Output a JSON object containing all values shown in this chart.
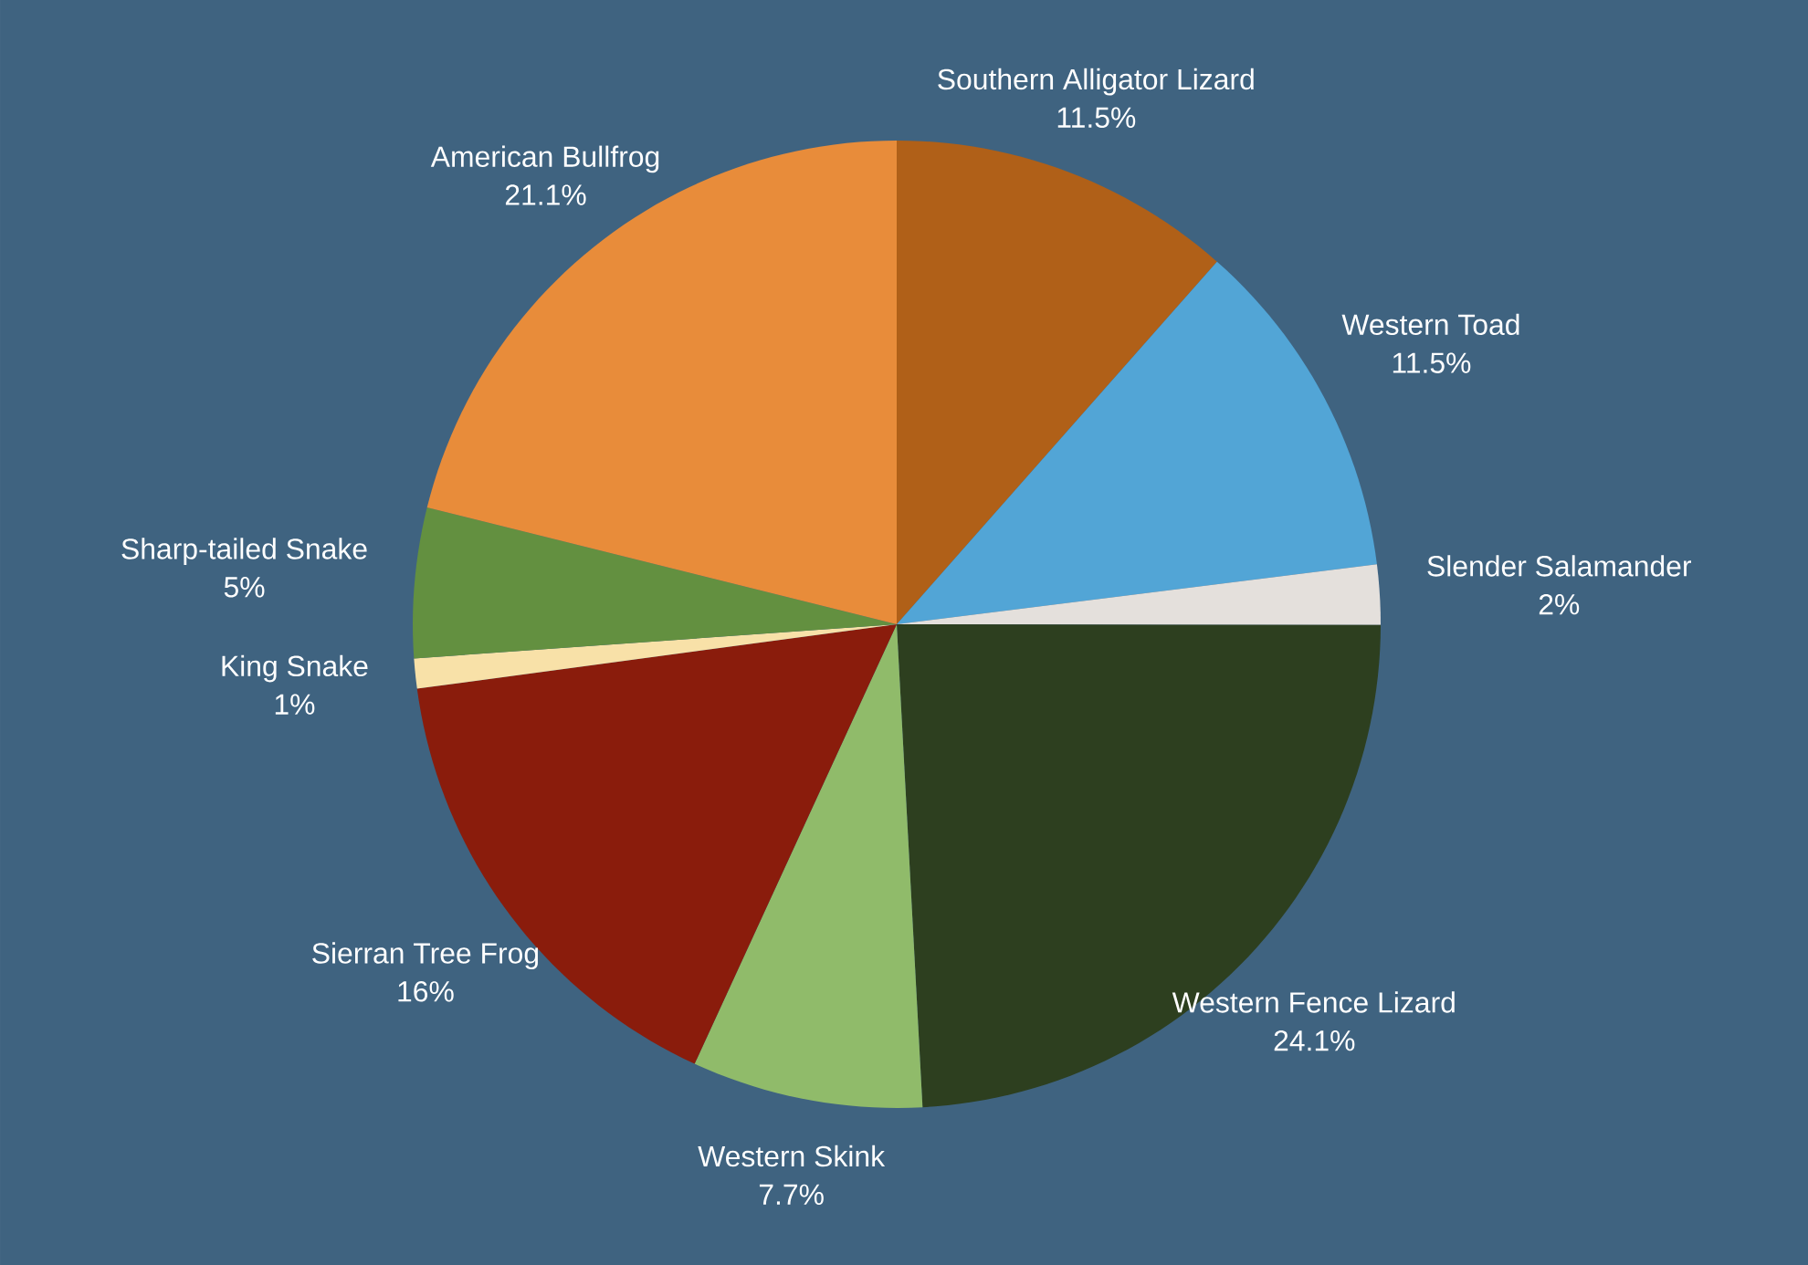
{
  "chart_data": {
    "type": "pie",
    "categories": [
      "Southern Alligator Lizard",
      "Western Toad",
      "Slender Salamander",
      "Western Fence Lizard",
      "Western Skink",
      "Sierran Tree Frog",
      "King Snake",
      "Sharp-tailed Snake",
      "American Bullfrog"
    ],
    "values": [
      11.5,
      11.5,
      2,
      24.1,
      7.7,
      16,
      1,
      5,
      21.1
    ],
    "colors": [
      "#b06018",
      "#52a5d6",
      "#e4e0dc",
      "#2d3f1f",
      "#90bb6a",
      "#8a1c0c",
      "#f8e1a8",
      "#639040",
      "#e88c3a"
    ],
    "value_labels": [
      "11.5%",
      "11.5%",
      "2%",
      "24.1%",
      "7.7%",
      "16%",
      "1%",
      "5%",
      "21.1%"
    ]
  }
}
